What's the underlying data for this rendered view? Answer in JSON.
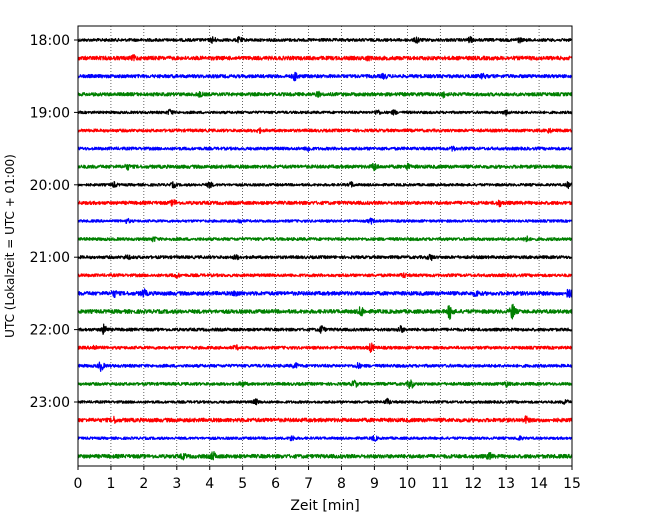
{
  "chart_data": {
    "type": "line",
    "title": "",
    "xlabel": "Zeit  [min]",
    "ylabel": "UTC (Lokalzeit = UTC + 01:00)",
    "xlim": [
      0,
      15
    ],
    "x_ticks": [
      "0",
      "1",
      "2",
      "3",
      "4",
      "5",
      "6",
      "7",
      "8",
      "9",
      "10",
      "11",
      "12",
      "13",
      "14",
      "15"
    ],
    "y_ticks": [
      "18:00",
      "19:00",
      "20:00",
      "21:00",
      "22:00",
      "23:00"
    ],
    "y_range_hours": [
      "18:00",
      "23:45"
    ],
    "row_interval_min": 15,
    "grid": {
      "vertical": true,
      "style": "dotted"
    },
    "color_cycle": [
      "#000000",
      "#ff0000",
      "#0000ff",
      "#008000"
    ],
    "rows": [
      {
        "start": "18:00",
        "color": "#000000",
        "amplitude": 0.35,
        "bursts": [
          [
            4.1,
            0.6
          ],
          [
            4.9,
            0.5
          ],
          [
            10.3,
            0.6
          ],
          [
            11.9,
            0.5
          ],
          [
            13.4,
            0.4
          ]
        ]
      },
      {
        "start": "18:15",
        "color": "#ff0000",
        "amplitude": 0.45,
        "bursts": [
          [
            1.7,
            0.4
          ],
          [
            8.8,
            0.3
          ]
        ]
      },
      {
        "start": "18:30",
        "color": "#0000ff",
        "amplitude": 0.4,
        "bursts": [
          [
            6.6,
            0.9
          ],
          [
            9.3,
            0.4
          ],
          [
            12.3,
            0.4
          ]
        ]
      },
      {
        "start": "18:45",
        "color": "#008000",
        "amplitude": 0.4,
        "bursts": [
          [
            3.7,
            0.4
          ],
          [
            7.3,
            0.4
          ],
          [
            11.1,
            0.5
          ]
        ]
      },
      {
        "start": "19:00",
        "color": "#000000",
        "amplitude": 0.3,
        "bursts": [
          [
            2.8,
            0.6
          ],
          [
            9.1,
            0.5
          ],
          [
            9.6,
            0.4
          ],
          [
            13.0,
            0.5
          ]
        ]
      },
      {
        "start": "19:15",
        "color": "#ff0000",
        "amplitude": 0.35,
        "bursts": [
          [
            5.5,
            0.4
          ],
          [
            14.3,
            0.4
          ]
        ]
      },
      {
        "start": "19:30",
        "color": "#0000ff",
        "amplitude": 0.35,
        "bursts": [
          [
            7.0,
            0.5
          ],
          [
            11.4,
            0.4
          ]
        ]
      },
      {
        "start": "19:45",
        "color": "#008000",
        "amplitude": 0.4,
        "bursts": [
          [
            1.5,
            0.5
          ],
          [
            9.0,
            0.8
          ],
          [
            10.0,
            0.5
          ]
        ]
      },
      {
        "start": "20:00",
        "color": "#000000",
        "amplitude": 0.3,
        "bursts": [
          [
            1.1,
            0.5
          ],
          [
            2.9,
            0.5
          ],
          [
            4.0,
            0.6
          ],
          [
            8.3,
            0.5
          ],
          [
            14.9,
            0.6
          ]
        ]
      },
      {
        "start": "20:15",
        "color": "#ff0000",
        "amplitude": 0.4,
        "bursts": [
          [
            2.9,
            0.6
          ],
          [
            12.8,
            0.6
          ]
        ]
      },
      {
        "start": "20:30",
        "color": "#0000ff",
        "amplitude": 0.3,
        "bursts": [
          [
            1.5,
            0.4
          ],
          [
            4.9,
            0.4
          ],
          [
            8.9,
            0.5
          ]
        ]
      },
      {
        "start": "20:45",
        "color": "#008000",
        "amplitude": 0.35,
        "bursts": [
          [
            2.3,
            0.4
          ],
          [
            13.6,
            0.6
          ]
        ]
      },
      {
        "start": "21:00",
        "color": "#000000",
        "amplitude": 0.35,
        "bursts": [
          [
            1.5,
            0.4
          ],
          [
            4.8,
            0.4
          ],
          [
            10.7,
            0.6
          ]
        ]
      },
      {
        "start": "21:15",
        "color": "#ff0000",
        "amplitude": 0.35,
        "bursts": [
          [
            3.0,
            0.4
          ],
          [
            9.9,
            0.4
          ]
        ]
      },
      {
        "start": "21:30",
        "color": "#0000ff",
        "amplitude": 0.45,
        "bursts": [
          [
            1.1,
            0.6
          ],
          [
            2.0,
            0.7
          ],
          [
            4.8,
            0.5
          ],
          [
            12.1,
            0.5
          ],
          [
            14.9,
            0.9
          ]
        ]
      },
      {
        "start": "21:45",
        "color": "#008000",
        "amplitude": 0.45,
        "bursts": [
          [
            8.6,
            1.0
          ],
          [
            11.3,
            1.6
          ],
          [
            13.2,
            1.6
          ]
        ]
      },
      {
        "start": "22:00",
        "color": "#000000",
        "amplitude": 0.35,
        "bursts": [
          [
            0.8,
            1.1
          ],
          [
            7.4,
            0.8
          ],
          [
            9.8,
            0.7
          ]
        ]
      },
      {
        "start": "22:15",
        "color": "#ff0000",
        "amplitude": 0.35,
        "bursts": [
          [
            0.5,
            0.5
          ],
          [
            8.9,
            0.9
          ],
          [
            4.8,
            0.4
          ]
        ]
      },
      {
        "start": "22:30",
        "color": "#0000ff",
        "amplitude": 0.35,
        "bursts": [
          [
            0.7,
            1.0
          ],
          [
            6.6,
            0.5
          ],
          [
            8.5,
            0.5
          ]
        ]
      },
      {
        "start": "22:45",
        "color": "#008000",
        "amplitude": 0.35,
        "bursts": [
          [
            5.0,
            0.5
          ],
          [
            8.4,
            0.7
          ],
          [
            10.1,
            1.0
          ],
          [
            13.0,
            0.5
          ]
        ]
      },
      {
        "start": "23:00",
        "color": "#000000",
        "amplitude": 0.3,
        "bursts": [
          [
            5.4,
            0.5
          ],
          [
            9.4,
            0.6
          ],
          [
            14.8,
            0.5
          ]
        ]
      },
      {
        "start": "23:15",
        "color": "#ff0000",
        "amplitude": 0.45,
        "bursts": [
          [
            1.1,
            0.5
          ],
          [
            13.6,
            0.6
          ]
        ]
      },
      {
        "start": "23:30",
        "color": "#0000ff",
        "amplitude": 0.3,
        "bursts": [
          [
            6.5,
            0.5
          ],
          [
            9.0,
            0.5
          ],
          [
            13.4,
            0.4
          ]
        ]
      },
      {
        "start": "23:45",
        "color": "#008000",
        "amplitude": 0.45,
        "bursts": [
          [
            3.2,
            0.4
          ],
          [
            4.1,
            0.8
          ],
          [
            12.5,
            0.6
          ]
        ]
      }
    ]
  }
}
